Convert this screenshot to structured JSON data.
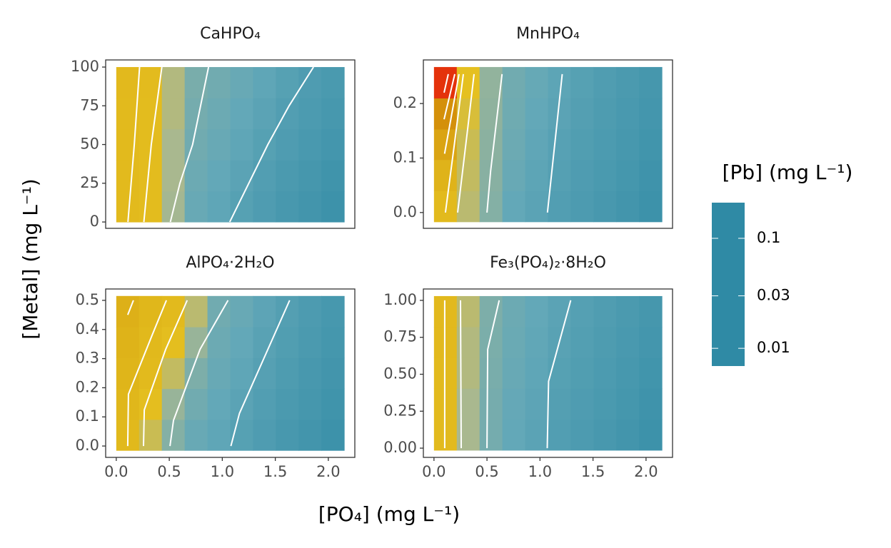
{
  "chart_data": {
    "type": "heatmap",
    "ylabel": "[Metal] (mg L⁻¹)",
    "xlabel": "[PO₄] (mg L⁻¹)",
    "xlim": [
      -0.1,
      2.25
    ],
    "xticks": [
      {
        "value": 0,
        "label": "0.0"
      },
      {
        "value": 0.5,
        "label": "0.5"
      },
      {
        "value": 1,
        "label": "1.0"
      },
      {
        "value": 1.5,
        "label": "1.5"
      },
      {
        "value": 2,
        "label": "2.0"
      }
    ],
    "x_edges": [
      0,
      0.215,
      0.43,
      0.645,
      0.86,
      1.075,
      1.29,
      1.505,
      1.72,
      1.935,
      2.15
    ],
    "colorscale": {
      "title": "[Pb] (mg L⁻¹)",
      "log": true,
      "lim": [
        0.0069,
        0.211
      ],
      "ticks": [
        0.1,
        0.03,
        0.01
      ],
      "stops": [
        {
          "value": 0.0069,
          "color": "#2f8aa5"
        },
        {
          "value": 0.012,
          "color": "#63a8b8"
        },
        {
          "value": 0.022,
          "color": "#a9b88f"
        },
        {
          "value": 0.03,
          "color": "#e5c020"
        },
        {
          "value": 0.05,
          "color": "#ddb018"
        },
        {
          "value": 0.1,
          "color": "#d4900a"
        },
        {
          "value": 0.15,
          "color": "#e0600c"
        },
        {
          "value": 0.211,
          "color": "#e80a0a"
        }
      ]
    },
    "contour_color": "#ffffff",
    "panels": [
      {
        "title": "CaHPO₄",
        "ylim": [
          -4.1,
          104.6
        ],
        "yticks": [
          0,
          25,
          50,
          75,
          100
        ],
        "y_edges": [
          0,
          20,
          40,
          60,
          80,
          100
        ],
        "z": [
          [
            0.036,
            0.034,
            0.021,
            0.0125,
            0.0115,
            0.0105,
            0.0097,
            0.009,
            0.0085,
            0.008
          ],
          [
            0.036,
            0.034,
            0.022,
            0.013,
            0.012,
            0.011,
            0.01,
            0.0093,
            0.0088,
            0.0083
          ],
          [
            0.036,
            0.034,
            0.022,
            0.0135,
            0.0125,
            0.0115,
            0.0105,
            0.0097,
            0.0091,
            0.0086
          ],
          [
            0.036,
            0.034,
            0.023,
            0.014,
            0.013,
            0.012,
            0.011,
            0.01,
            0.0094,
            0.0089
          ],
          [
            0.037,
            0.035,
            0.023,
            0.0145,
            0.0135,
            0.0125,
            0.0115,
            0.0105,
            0.0097,
            0.0092
          ]
        ],
        "contours": [
          {
            "x": [
              0.11,
              0.17,
              0.22
            ],
            "y": [
              0,
              50,
              100
            ]
          },
          {
            "x": [
              0.26,
              0.33,
              0.43
            ],
            "y": [
              0,
              50,
              100
            ]
          },
          {
            "x": [
              0.51,
              0.6,
              0.72,
              0.87
            ],
            "y": [
              0,
              25,
              50,
              100
            ]
          },
          {
            "x": [
              1.07,
              1.43,
              1.63,
              1.86
            ],
            "y": [
              0,
              50,
              75,
              100
            ]
          }
        ]
      },
      {
        "title": "MnHPO₄",
        "ylim": [
          -0.029,
          0.28
        ],
        "yticks": [
          {
            "value": 0,
            "label": "0.0"
          },
          {
            "value": 0.1,
            "label": "0.1"
          },
          {
            "value": 0.2,
            "label": "0.2"
          }
        ],
        "y_edges": [
          -0.017,
          0.04,
          0.097,
          0.153,
          0.21,
          0.267
        ],
        "z": [
          [
            0.036,
            0.024,
            0.016,
            0.012,
            0.011,
            0.01,
            0.0095,
            0.009,
            0.0085,
            0.008
          ],
          [
            0.045,
            0.025,
            0.0165,
            0.0125,
            0.0113,
            0.0103,
            0.0097,
            0.0092,
            0.0087,
            0.0082
          ],
          [
            0.065,
            0.026,
            0.017,
            0.013,
            0.0116,
            0.0106,
            0.0099,
            0.0094,
            0.0089,
            0.0084
          ],
          [
            0.1,
            0.028,
            0.0175,
            0.0133,
            0.012,
            0.011,
            0.0102,
            0.0096,
            0.0091,
            0.0086
          ],
          [
            0.18,
            0.03,
            0.018,
            0.0136,
            0.0123,
            0.0113,
            0.0105,
            0.0098,
            0.0093,
            0.0088
          ]
        ],
        "contours": [
          {
            "x": [
              0.095,
              0.135
            ],
            "y": [
              0.22,
              0.254
            ]
          },
          {
            "x": [
              0.095,
              0.196
            ],
            "y": [
              0.171,
              0.254
            ]
          },
          {
            "x": [
              0.1,
              0.236
            ],
            "y": [
              0.108,
              0.254
            ]
          },
          {
            "x": [
              0.108,
              0.19,
              0.277
            ],
            "y": [
              0,
              0.122,
              0.254
            ]
          },
          {
            "x": [
              0.223,
              0.318,
              0.378
            ],
            "y": [
              0,
              0.154,
              0.254
            ]
          },
          {
            "x": [
              0.5,
              0.534,
              0.642
            ],
            "y": [
              0,
              0.076,
              0.254
            ]
          },
          {
            "x": [
              1.07,
              1.21
            ],
            "y": [
              0,
              0.254
            ]
          }
        ]
      },
      {
        "title": "AlPO₄·2H₂O",
        "ylim": [
          -0.039,
          0.539
        ],
        "yticks": [
          {
            "value": 0,
            "label": "0.0"
          },
          {
            "value": 0.1,
            "label": "0.1"
          },
          {
            "value": 0.2,
            "label": "0.2"
          },
          {
            "value": 0.3,
            "label": "0.3"
          },
          {
            "value": 0.4,
            "label": "0.4"
          },
          {
            "value": 0.5,
            "label": "0.5"
          }
        ],
        "y_edges": [
          -0.015,
          0.091,
          0.197,
          0.303,
          0.409,
          0.515
        ],
        "z": [
          [
            0.038,
            0.026,
            0.016,
            0.0125,
            0.0115,
            0.0105,
            0.0097,
            0.009,
            0.0085,
            0.008
          ],
          [
            0.04,
            0.032,
            0.019,
            0.0135,
            0.012,
            0.011,
            0.01,
            0.0093,
            0.0088,
            0.0083
          ],
          [
            0.043,
            0.036,
            0.025,
            0.015,
            0.0125,
            0.0115,
            0.0104,
            0.0096,
            0.009,
            0.0085
          ],
          [
            0.046,
            0.038,
            0.032,
            0.019,
            0.013,
            0.012,
            0.0108,
            0.0099,
            0.0093,
            0.0087
          ],
          [
            0.05,
            0.04,
            0.036,
            0.024,
            0.0135,
            0.0125,
            0.0112,
            0.0102,
            0.0095,
            0.0089
          ]
        ],
        "contours": [
          {
            "x": [
              0.108,
              0.162
            ],
            "y": [
              0.45,
              0.5
            ]
          },
          {
            "x": [
              0.108,
              0.115,
              0.338,
              0.473
            ],
            "y": [
              0,
              0.178,
              0.38,
              0.5
            ]
          },
          {
            "x": [
              0.257,
              0.264,
              0.466,
              0.669
            ],
            "y": [
              0,
              0.124,
              0.332,
              0.5
            ]
          },
          {
            "x": [
              0.507,
              0.54,
              0.79,
              1.054
            ],
            "y": [
              0,
              0.088,
              0.332,
              0.5
            ]
          },
          {
            "x": [
              1.081,
              1.162,
              1.635
            ],
            "y": [
              0,
              0.112,
              0.5
            ]
          }
        ]
      },
      {
        "title": "Fe₃(PO₄)₂·8H₂O",
        "ylim": [
          -0.0625,
          1.077
        ],
        "yticks": [
          {
            "value": 0,
            "label": "0.00"
          },
          {
            "value": 0.25,
            "label": "0.25"
          },
          {
            "value": 0.5,
            "label": "0.50"
          },
          {
            "value": 0.75,
            "label": "0.75"
          },
          {
            "value": 1,
            "label": "1.00"
          }
        ],
        "y_edges": [
          -0.014,
          0.195,
          0.404,
          0.612,
          0.821,
          1.029
        ],
        "z": [
          [
            0.036,
            0.022,
            0.014,
            0.012,
            0.011,
            0.01,
            0.0095,
            0.009,
            0.0085,
            0.008
          ],
          [
            0.036,
            0.022,
            0.0142,
            0.0122,
            0.0112,
            0.0102,
            0.0097,
            0.0092,
            0.0087,
            0.0082
          ],
          [
            0.036,
            0.023,
            0.0145,
            0.0125,
            0.0115,
            0.0105,
            0.0099,
            0.0094,
            0.0089,
            0.0084
          ],
          [
            0.037,
            0.023,
            0.0148,
            0.0128,
            0.0118,
            0.0108,
            0.0101,
            0.0096,
            0.0091,
            0.0086
          ],
          [
            0.037,
            0.024,
            0.015,
            0.013,
            0.012,
            0.011,
            0.0103,
            0.0098,
            0.0093,
            0.0088
          ]
        ],
        "contours": [
          {
            "x": [
              0.101,
              0.101
            ],
            "y": [
              0,
              1
            ]
          },
          {
            "x": [
              0.257,
              0.25
            ],
            "y": [
              0,
              1
            ]
          },
          {
            "x": [
              0.5,
              0.507,
              0.615
            ],
            "y": [
              0,
              0.668,
              1
            ]
          },
          {
            "x": [
              1.068,
              1.081,
              1.29
            ],
            "y": [
              0,
              0.452,
              1
            ]
          }
        ]
      }
    ]
  }
}
